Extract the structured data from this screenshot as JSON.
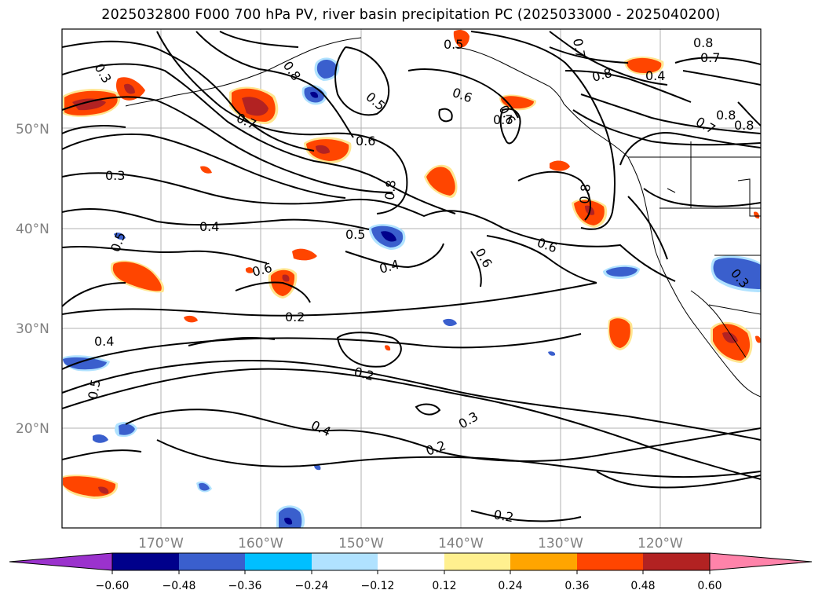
{
  "title": "2025032800 F000 700 hPa PV, river basin precipitation PC (2025033000 - 2025040200)",
  "map": {
    "lat_labels": [
      "50°N",
      "40°N",
      "30°N",
      "20°N"
    ],
    "lon_labels": [
      "170°W",
      "160°W",
      "150°W",
      "140°W",
      "130°W",
      "120°W"
    ],
    "gridline_color": "#b0b0b0",
    "contour_labels": [
      "0.3",
      "0.4",
      "0.5",
      "0.6",
      "0.7",
      "0.8",
      "0.2",
      "0.3",
      "0.4",
      "0.5",
      "0.6",
      "0.7",
      "0.8",
      "0.5",
      "0.6",
      "0.6",
      "0.4",
      "0.4",
      "0.2",
      "0.4",
      "0.3",
      "0.2",
      "0.2",
      "0.5",
      "0.5",
      "0.7",
      "0.6",
      "0.8",
      "0.8",
      "0.7",
      "0.8",
      "0.8",
      "0.7",
      "0.8",
      "0.6",
      "0.3"
    ]
  },
  "colorbar": {
    "colors": [
      "#9b32cd",
      "#00008b",
      "#3a5fcd",
      "#00bfff",
      "#b0e2ff",
      "#ffffff",
      "#fff08f",
      "#ffa500",
      "#ff4500",
      "#b22222",
      "#ff83aa"
    ],
    "tick_labels": [
      "−0.60",
      "−0.48",
      "−0.36",
      "−0.24",
      "−0.12",
      "0.12",
      "0.24",
      "0.36",
      "0.48",
      "0.60"
    ]
  }
}
